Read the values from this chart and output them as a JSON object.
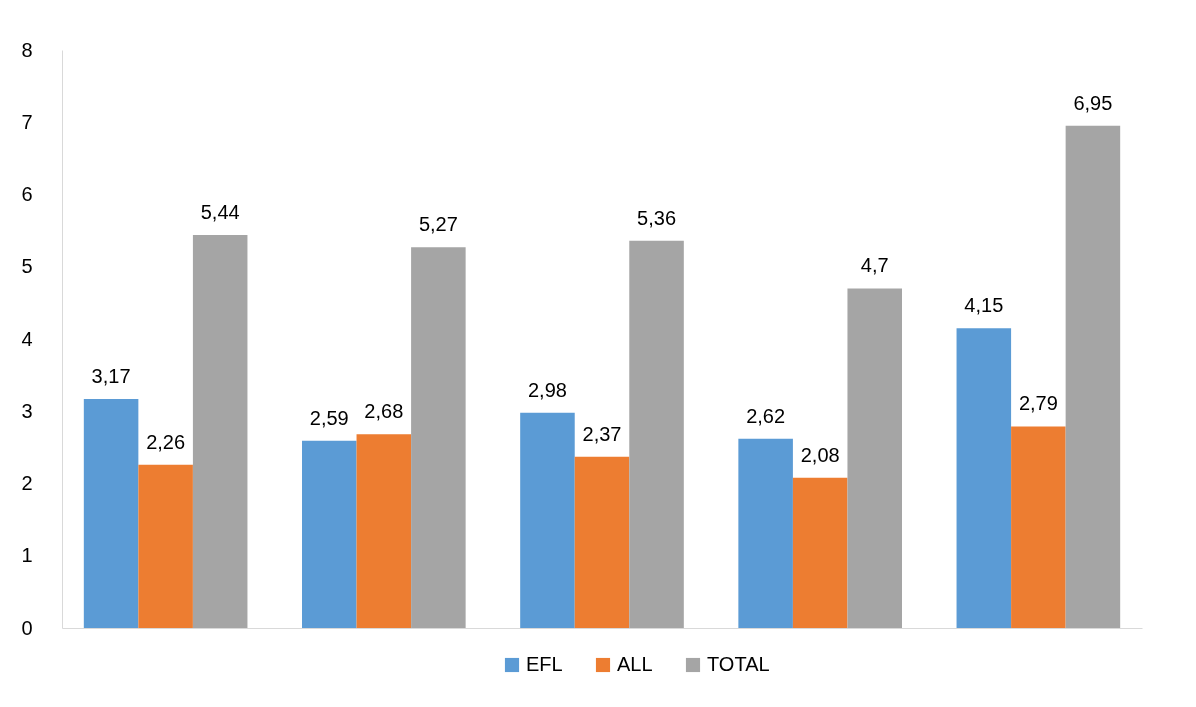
{
  "chart_data": {
    "type": "bar",
    "categories": [
      null,
      null,
      null,
      null,
      null
    ],
    "series": [
      {
        "name": "EFL",
        "color": "#5b9bd5",
        "values": [
          3.17,
          2.59,
          2.98,
          2.62,
          4.15
        ],
        "value_labels": [
          "3,17",
          "2,59",
          "2,98",
          "2,62",
          "4,15"
        ]
      },
      {
        "name": "ALL",
        "color": "#ed7d31",
        "values": [
          2.26,
          2.68,
          2.37,
          2.08,
          2.79
        ],
        "value_labels": [
          "2,26",
          "2,68",
          "2,37",
          "2,08",
          "2,79"
        ]
      },
      {
        "name": "TOTAL",
        "color": "#a5a5a5",
        "values": [
          5.44,
          5.27,
          5.36,
          4.7,
          6.95
        ],
        "value_labels": [
          "5,44",
          "5,27",
          "5,36",
          "4,7",
          "6,95"
        ]
      }
    ],
    "ylim": [
      0,
      8
    ],
    "yticks": [
      0,
      1,
      2,
      3,
      4,
      5,
      6,
      7,
      8
    ],
    "grid": false,
    "legend": "bottom",
    "tick_labels": "y"
  }
}
